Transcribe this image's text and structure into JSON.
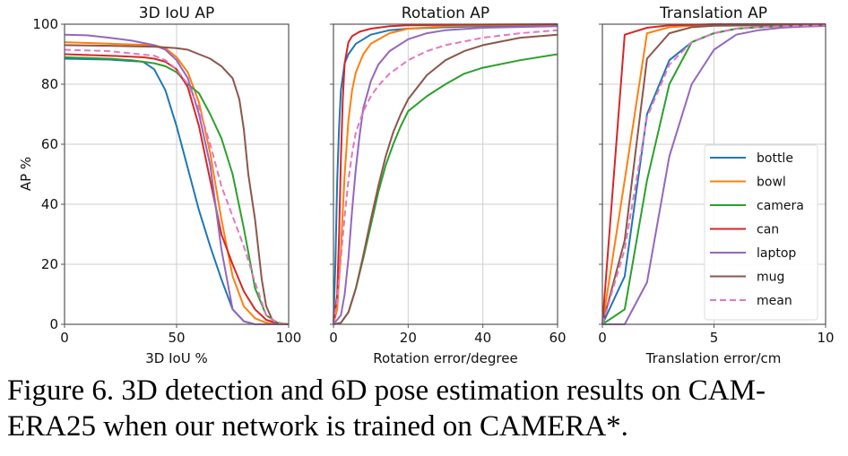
{
  "caption": {
    "line1": "Figure 6. 3D detection and 6D pose estimation results on CAM-",
    "line2": "ERA25 when our network is trained on CAMERA*."
  },
  "chart_data": [
    {
      "type": "line",
      "title": "3D IoU AP",
      "xlabel": "3D IoU %",
      "ylabel": "AP %",
      "xlim": [
        0,
        100
      ],
      "ylim": [
        0,
        100
      ],
      "xticks": [
        0,
        50,
        100
      ],
      "yticks": [
        0,
        20,
        40,
        60,
        80,
        100
      ],
      "grid": true,
      "series": [
        {
          "name": "bottle",
          "color": "#1f77b4",
          "dash": false,
          "x": [
            0,
            20,
            35,
            40,
            45,
            50,
            55,
            60,
            65,
            70,
            75,
            80,
            85,
            90,
            100
          ],
          "y": [
            88.5,
            88.2,
            87.5,
            85,
            78,
            66,
            52,
            38,
            26,
            15,
            5,
            1,
            0,
            0,
            0
          ]
        },
        {
          "name": "bowl",
          "color": "#ff7f0e",
          "dash": false,
          "x": [
            0,
            20,
            40,
            45,
            50,
            55,
            60,
            65,
            70,
            75,
            80,
            85,
            90,
            95,
            100
          ],
          "y": [
            94,
            93.5,
            93,
            92,
            89,
            84,
            74,
            57,
            35,
            16,
            6,
            2,
            0.5,
            0,
            0
          ]
        },
        {
          "name": "camera",
          "color": "#2ca02c",
          "dash": false,
          "x": [
            0,
            20,
            30,
            40,
            45,
            50,
            55,
            60,
            65,
            70,
            75,
            80,
            85,
            90,
            95,
            100
          ],
          "y": [
            89,
            88.5,
            88,
            87,
            86,
            84,
            80,
            77,
            70,
            62,
            50,
            32,
            12,
            3,
            0.5,
            0
          ]
        },
        {
          "name": "can",
          "color": "#d62728",
          "dash": false,
          "x": [
            0,
            20,
            35,
            40,
            45,
            50,
            55,
            60,
            65,
            70,
            75,
            80,
            85,
            90,
            95,
            100
          ],
          "y": [
            90,
            89.5,
            89,
            88.5,
            87.5,
            85,
            79,
            66,
            48,
            30,
            20,
            11,
            5,
            1.5,
            0.3,
            0
          ]
        },
        {
          "name": "laptop",
          "color": "#9467bd",
          "dash": false,
          "x": [
            0,
            10,
            20,
            30,
            40,
            45,
            50,
            55,
            60,
            65,
            70,
            75,
            80,
            85,
            90,
            100
          ],
          "y": [
            96.5,
            96.3,
            95.5,
            94.5,
            93,
            91.5,
            88,
            82,
            70,
            53,
            25,
            5,
            1,
            0,
            0,
            0
          ]
        },
        {
          "name": "mug",
          "color": "#8c564b",
          "dash": false,
          "x": [
            0,
            20,
            40,
            50,
            55,
            60,
            65,
            70,
            75,
            78,
            80,
            82,
            85,
            88,
            90,
            93,
            96,
            100
          ],
          "y": [
            93,
            92.8,
            92.5,
            92,
            91.5,
            90,
            88.5,
            86,
            82,
            75,
            65,
            50,
            35,
            15,
            6,
            1,
            0,
            0
          ]
        },
        {
          "name": "mean",
          "color": "#e377c2",
          "dash": true,
          "x": [
            0,
            20,
            40,
            45,
            50,
            55,
            60,
            65,
            70,
            75,
            80,
            85,
            90,
            95,
            100
          ],
          "y": [
            91.5,
            91,
            89.5,
            88,
            85,
            80,
            72,
            60,
            46,
            36,
            26,
            14,
            3,
            0.3,
            0
          ]
        }
      ]
    },
    {
      "type": "line",
      "title": "Rotation AP",
      "xlabel": "Rotation error/degree",
      "ylabel": "",
      "xlim": [
        0,
        60
      ],
      "ylim": [
        0,
        100
      ],
      "xticks": [
        0,
        20,
        40,
        60
      ],
      "yticks": [
        0,
        20,
        40,
        60,
        80,
        100
      ],
      "grid": true,
      "series": [
        {
          "name": "bottle",
          "color": "#1f77b4",
          "dash": false,
          "x": [
            0,
            0.5,
            1,
            1.5,
            2,
            3,
            4,
            6,
            8,
            10,
            15,
            20,
            30,
            40,
            60
          ],
          "y": [
            0,
            20,
            48,
            66,
            78,
            87,
            90,
            93.5,
            95,
            96.5,
            98,
            98.5,
            99,
            99.3,
            99.6
          ]
        },
        {
          "name": "bowl",
          "color": "#ff7f0e",
          "dash": false,
          "x": [
            0,
            1,
            2,
            3,
            4,
            5,
            6,
            8,
            10,
            15,
            20,
            30,
            40,
            60
          ],
          "y": [
            0,
            5,
            25,
            50,
            68,
            78,
            84,
            90,
            93.5,
            97,
            98.5,
            99.3,
            99.6,
            99.9
          ]
        },
        {
          "name": "camera",
          "color": "#2ca02c",
          "dash": false,
          "x": [
            0,
            2,
            4,
            6,
            8,
            10,
            12,
            14,
            16,
            18,
            20,
            25,
            30,
            35,
            40,
            50,
            60
          ],
          "y": [
            0,
            0.5,
            4,
            12,
            22,
            33,
            44,
            53,
            60,
            66,
            71,
            76,
            80,
            83.5,
            85.5,
            88,
            90
          ]
        },
        {
          "name": "can",
          "color": "#d62728",
          "dash": false,
          "x": [
            0,
            1,
            1.5,
            2,
            2.5,
            3,
            4,
            5,
            7,
            10,
            15,
            20,
            30,
            60
          ],
          "y": [
            0,
            10,
            30,
            55,
            75,
            87,
            94,
            96,
            97.5,
            98.5,
            99.3,
            99.6,
            99.8,
            100
          ]
        },
        {
          "name": "laptop",
          "color": "#9467bd",
          "dash": false,
          "x": [
            0,
            2,
            3,
            4,
            5,
            6,
            7,
            8,
            10,
            12,
            15,
            20,
            25,
            30,
            40,
            60
          ],
          "y": [
            0,
            3,
            10,
            22,
            38,
            52,
            63,
            72,
            81,
            86.5,
            91,
            95,
            97,
            98,
            98.8,
            99.3
          ]
        },
        {
          "name": "mug",
          "color": "#8c564b",
          "dash": false,
          "x": [
            0,
            2,
            4,
            6,
            8,
            10,
            12,
            14,
            16,
            18,
            20,
            25,
            30,
            35,
            40,
            50,
            60
          ],
          "y": [
            0,
            0.5,
            4,
            12,
            23,
            35,
            46,
            56,
            64,
            70,
            75,
            83,
            88,
            91,
            93,
            95.5,
            96.5
          ]
        },
        {
          "name": "mean",
          "color": "#e377c2",
          "dash": true,
          "x": [
            0,
            1,
            2,
            3,
            4,
            5,
            6,
            8,
            10,
            12,
            15,
            20,
            25,
            30,
            40,
            50,
            60
          ],
          "y": [
            0,
            8,
            22,
            36,
            48,
            57,
            64,
            71,
            76,
            79.5,
            83.5,
            88,
            91,
            93,
            95.5,
            97,
            98
          ]
        }
      ]
    },
    {
      "type": "line",
      "title": "Translation AP",
      "xlabel": "Translation error/cm",
      "ylabel": "",
      "xlim": [
        0,
        10
      ],
      "ylim": [
        0,
        100
      ],
      "xticks": [
        0,
        5,
        10
      ],
      "yticks": [
        0,
        20,
        40,
        60,
        80,
        100
      ],
      "grid": true,
      "legend": "center-right",
      "series": [
        {
          "name": "bottle",
          "color": "#1f77b4",
          "dash": false,
          "x": [
            0,
            1,
            2,
            3,
            4,
            5,
            6,
            7,
            8,
            9,
            10
          ],
          "y": [
            0,
            16,
            70,
            88,
            94,
            97,
            98.5,
            99,
            99.3,
            99.5,
            99.6
          ]
        },
        {
          "name": "bowl",
          "color": "#ff7f0e",
          "dash": false,
          "x": [
            0,
            1,
            2,
            3,
            4,
            5,
            10
          ],
          "y": [
            0,
            48,
            97,
            99,
            99.5,
            99.8,
            100
          ]
        },
        {
          "name": "camera",
          "color": "#2ca02c",
          "dash": false,
          "x": [
            0,
            1,
            2,
            3,
            4,
            5,
            6,
            7,
            8,
            9,
            10
          ],
          "y": [
            0,
            5,
            48,
            80,
            94,
            97,
            98.5,
            99,
            99.3,
            99.5,
            99.6
          ]
        },
        {
          "name": "can",
          "color": "#d62728",
          "dash": false,
          "x": [
            0,
            1,
            2,
            3,
            4,
            5,
            10
          ],
          "y": [
            0,
            96.5,
            98.8,
            99.6,
            99.8,
            100,
            100
          ]
        },
        {
          "name": "laptop",
          "color": "#9467bd",
          "dash": false,
          "x": [
            0,
            1,
            2,
            3,
            4,
            5,
            6,
            7,
            8,
            9,
            10
          ],
          "y": [
            0,
            0,
            14,
            56,
            80,
            91.5,
            96.5,
            98,
            98.8,
            99.2,
            99.4
          ]
        },
        {
          "name": "mug",
          "color": "#8c564b",
          "dash": false,
          "x": [
            0,
            1,
            2,
            3,
            4,
            5,
            10
          ],
          "y": [
            0,
            28,
            88.5,
            97,
            99,
            99.5,
            99.8
          ]
        },
        {
          "name": "mean",
          "color": "#e377c2",
          "dash": true,
          "x": [
            0,
            1,
            2,
            3,
            4,
            5,
            6,
            7,
            8,
            9,
            10
          ],
          "y": [
            0,
            25,
            69,
            86.5,
            94,
            97,
            98.5,
            99,
            99.3,
            99.5,
            99.6
          ]
        }
      ]
    }
  ]
}
